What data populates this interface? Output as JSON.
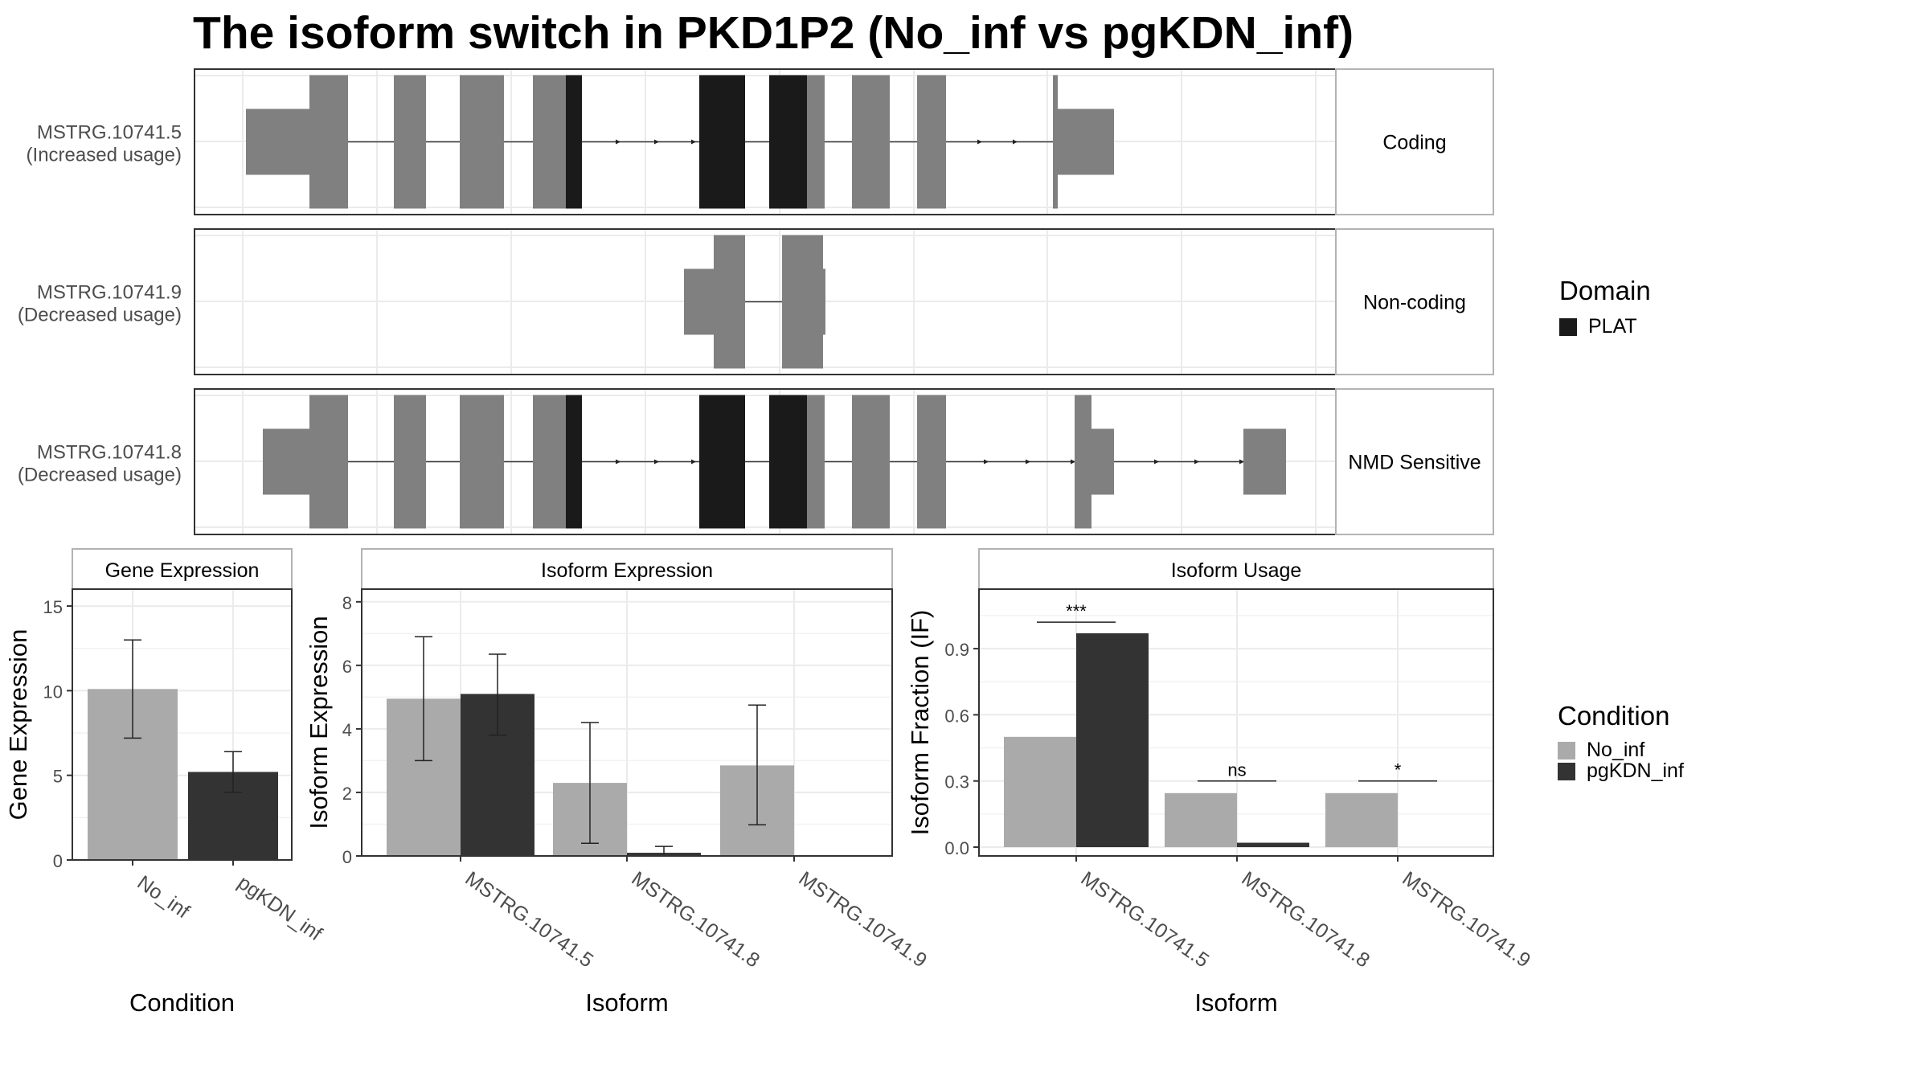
{
  "title": "The isoform switch in PKD1P2 (No_inf vs pgKDN_inf)",
  "colors": {
    "no_inf": "#aaaaaa",
    "pgkdn_inf": "#333333",
    "exon": "#808080",
    "domain_plat": "#1a1a1a",
    "panel_border": "#333333",
    "strip_border": "#b3b3b3",
    "grid": "#ebebeb"
  },
  "legends": {
    "domain": {
      "title": "Domain",
      "items": [
        {
          "label": "PLAT",
          "color": "#1a1a1a"
        }
      ]
    },
    "condition": {
      "title": "Condition",
      "items": [
        {
          "label": "No_inf",
          "color": "#aaaaaa"
        },
        {
          "label": "pgKDN_inf",
          "color": "#333333"
        }
      ]
    }
  },
  "isoform_tracks": [
    {
      "id": "MSTRG.10741.5",
      "usage": "(Increased usage)",
      "category": "Coding"
    },
    {
      "id": "MSTRG.10741.9",
      "usage": "(Decreased usage)",
      "category": "Non-coding"
    },
    {
      "id": "MSTRG.10741.8",
      "usage": "(Decreased usage)",
      "category": "NMD Sensitive"
    }
  ],
  "chart_data": [
    {
      "type": "bar",
      "title": "Gene Expression",
      "xlabel": "Condition",
      "ylabel": "Gene Expression",
      "categories": [
        "No_inf",
        "pgKDN_inf"
      ],
      "values": [
        10.1,
        5.2
      ],
      "error_low": [
        7.2,
        4.0
      ],
      "error_high": [
        13.0,
        6.4
      ],
      "ylim": [
        0,
        16
      ],
      "yticks": [
        0,
        5,
        10,
        15
      ]
    },
    {
      "type": "bar",
      "title": "Isoform Expression",
      "xlabel": "Isoform",
      "ylabel": "Isoform Expression",
      "categories": [
        "MSTRG.10741.5",
        "MSTRG.10741.8",
        "MSTRG.10741.9"
      ],
      "series": [
        {
          "name": "No_inf",
          "values": [
            4.95,
            2.3,
            2.85
          ],
          "error_low": [
            3.0,
            0.4,
            0.98
          ],
          "error_high": [
            6.9,
            4.2,
            4.75
          ]
        },
        {
          "name": "pgKDN_inf",
          "values": [
            5.1,
            0.1,
            0.0
          ],
          "error_low": [
            3.8,
            0.0,
            0.0
          ],
          "error_high": [
            6.35,
            0.3,
            0.0
          ]
        }
      ],
      "ylim": [
        0,
        8.4
      ],
      "yticks": [
        0,
        2,
        4,
        6,
        8
      ]
    },
    {
      "type": "bar",
      "title": "Isoform Usage",
      "xlabel": "Isoform",
      "ylabel": "Isoform Fraction (IF)",
      "categories": [
        "MSTRG.10741.5",
        "MSTRG.10741.8",
        "MSTRG.10741.9"
      ],
      "series": [
        {
          "name": "No_inf",
          "values": [
            0.5,
            0.245,
            0.245
          ]
        },
        {
          "name": "pgKDN_inf",
          "values": [
            0.97,
            0.02,
            0.0
          ]
        }
      ],
      "significance": [
        "***",
        "ns",
        "*"
      ],
      "ylim": [
        -0.04,
        1.17
      ],
      "yticks": [
        0.0,
        0.3,
        0.6,
        0.9
      ],
      "yticklabels": [
        "0.0",
        "0.3",
        "0.6",
        "0.9"
      ]
    }
  ]
}
